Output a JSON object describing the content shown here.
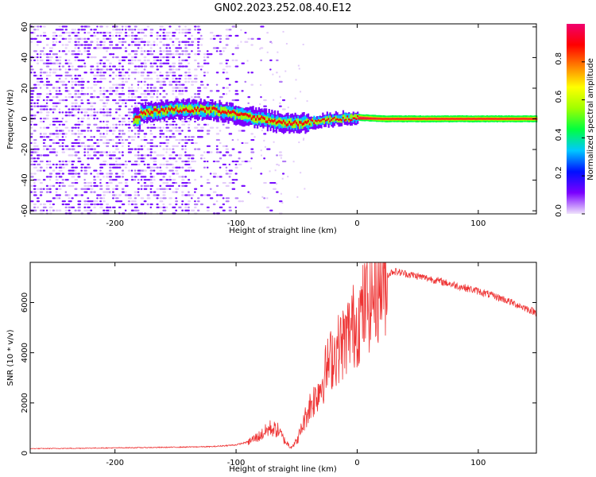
{
  "title": "GN02.2023.252.08.40.E12",
  "chart_data": [
    {
      "type": "heatmap",
      "id": "spectrogram",
      "xlabel": "Height of straight line (km)",
      "ylabel": "Frequency (Hz)",
      "xlim": [
        -270,
        148
      ],
      "ylim": [
        -62,
        62
      ],
      "xticks": [
        -200,
        -100,
        0,
        100
      ],
      "yticks": [
        -60,
        -40,
        -20,
        0,
        20,
        40,
        60
      ],
      "colorbar": {
        "label": "Normalized spectral amplitude",
        "range": [
          0,
          1
        ],
        "ticks": [
          0.0,
          0.2,
          0.4,
          0.6,
          0.8
        ],
        "colormap": [
          "#efe2fb",
          "#7a00ff",
          "#0010ff",
          "#00c8ff",
          "#00ff40",
          "#a0ff00",
          "#ffff00",
          "#ff8000",
          "#ff0000",
          "#f0006e"
        ]
      },
      "noise_region": {
        "x": [
          -270,
          -100
        ],
        "y": [
          -62,
          62
        ]
      },
      "signal_track": [
        {
          "x": -180,
          "y": 4
        },
        {
          "x": -150,
          "y": 6
        },
        {
          "x": -120,
          "y": 6
        },
        {
          "x": -100,
          "y": 3
        },
        {
          "x": -80,
          "y": 0
        },
        {
          "x": -60,
          "y": -3
        },
        {
          "x": -45,
          "y": -3
        },
        {
          "x": -30,
          "y": -1
        },
        {
          "x": -15,
          "y": 0
        },
        {
          "x": 0,
          "y": 1
        },
        {
          "x": 20,
          "y": 0
        },
        {
          "x": 148,
          "y": 0
        }
      ]
    },
    {
      "type": "line",
      "id": "snr",
      "xlabel": "Height of straight line (km)",
      "ylabel": "SNR (10 * v/v)",
      "xlim": [
        -270,
        148
      ],
      "ylim": [
        0,
        7600
      ],
      "xticks": [
        -200,
        -100,
        0,
        100
      ],
      "yticks": [
        0,
        2000,
        4000,
        6000
      ],
      "color": "#ee3333",
      "series": [
        {
          "x": [
            -270,
            -240,
            -200,
            -160,
            -120,
            -100,
            -90,
            -80,
            -72,
            -65,
            -60,
            -55,
            -50,
            -45,
            -40,
            -35,
            -30,
            -25,
            -20,
            -15,
            -10,
            -5,
            0,
            5,
            10,
            15,
            20,
            25,
            30,
            40,
            60,
            80,
            100,
            120,
            148
          ],
          "y": [
            180,
            190,
            210,
            230,
            260,
            330,
            450,
            700,
            1000,
            900,
            500,
            250,
            450,
            1100,
            1800,
            2200,
            2700,
            3400,
            3900,
            4200,
            4500,
            5000,
            5200,
            5700,
            6100,
            6500,
            6800,
            7100,
            7250,
            7150,
            6950,
            6700,
            6450,
            6150,
            5600
          ]
        }
      ]
    }
  ]
}
